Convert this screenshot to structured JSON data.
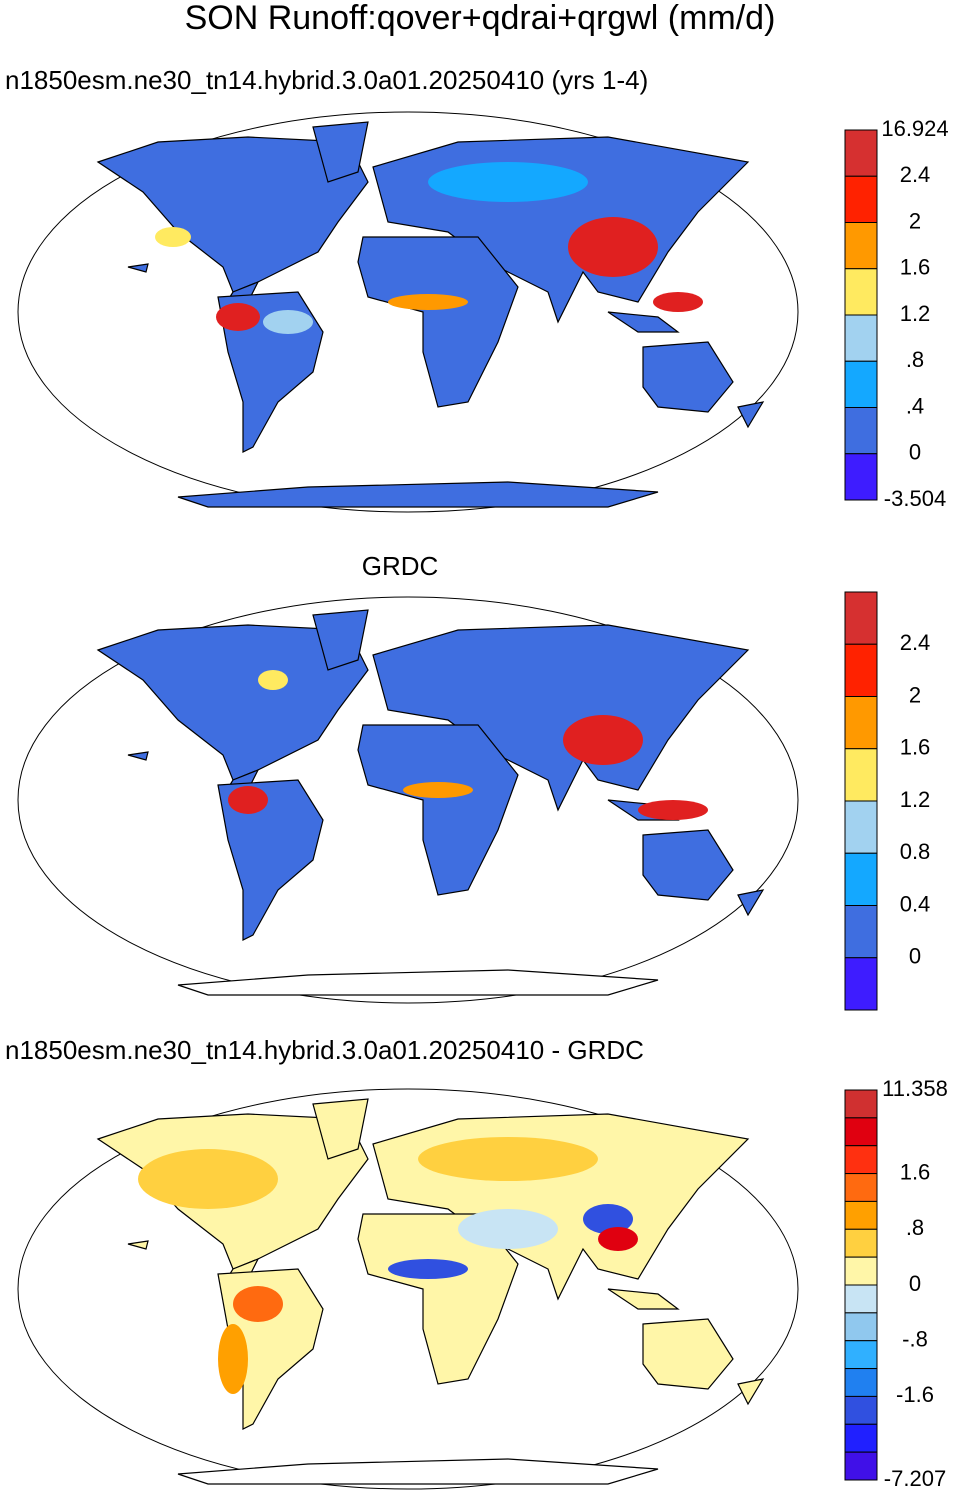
{
  "title": "SON Runoff:qover+qdrai+qrgwl (mm/d)",
  "panels": [
    {
      "subtitle": "n1850esm.ne30_tn14.hybrid.3.0a01.20250410 (yrs 1-4)",
      "colorbar": {
        "labels": [
          "16.924",
          "2.4",
          "2",
          "1.6",
          "1.2",
          ".8",
          ".4",
          "0",
          "-3.504"
        ],
        "colors": [
          "#d63030",
          "#ff2200",
          "#ff9900",
          "#ffea60",
          "#a2d2f0",
          "#14a8ff",
          "#3f6ee0",
          "#3e1cff"
        ]
      }
    },
    {
      "subtitle": "GRDC",
      "colorbar": {
        "labels": [
          null,
          "2.4",
          "2",
          "1.6",
          "1.2",
          "0.8",
          "0.4",
          "0",
          null
        ],
        "colors": [
          "#d63030",
          "#ff2200",
          "#ff9900",
          "#ffea60",
          "#a2d2f0",
          "#14a8ff",
          "#3f6ee0",
          "#3e1cff"
        ]
      }
    },
    {
      "subtitle": "n1850esm.ne30_tn14.hybrid.3.0a01.20250410 - GRDC",
      "colorbar": {
        "labels": [
          "11.358",
          null,
          null,
          "1.6",
          null,
          ".8",
          null,
          "0",
          null,
          "-.8",
          null,
          "-1.6",
          null,
          null,
          "-7.207"
        ],
        "colors": [
          "#d03030",
          "#e00010",
          "#ff3010",
          "#ff6a10",
          "#ffa000",
          "#ffd040",
          "#fff6a8",
          "#c8e4f4",
          "#90c8ee",
          "#30b0ff",
          "#2080f0",
          "#3050e0",
          "#2020ff",
          "#4010e8"
        ]
      }
    }
  ]
}
